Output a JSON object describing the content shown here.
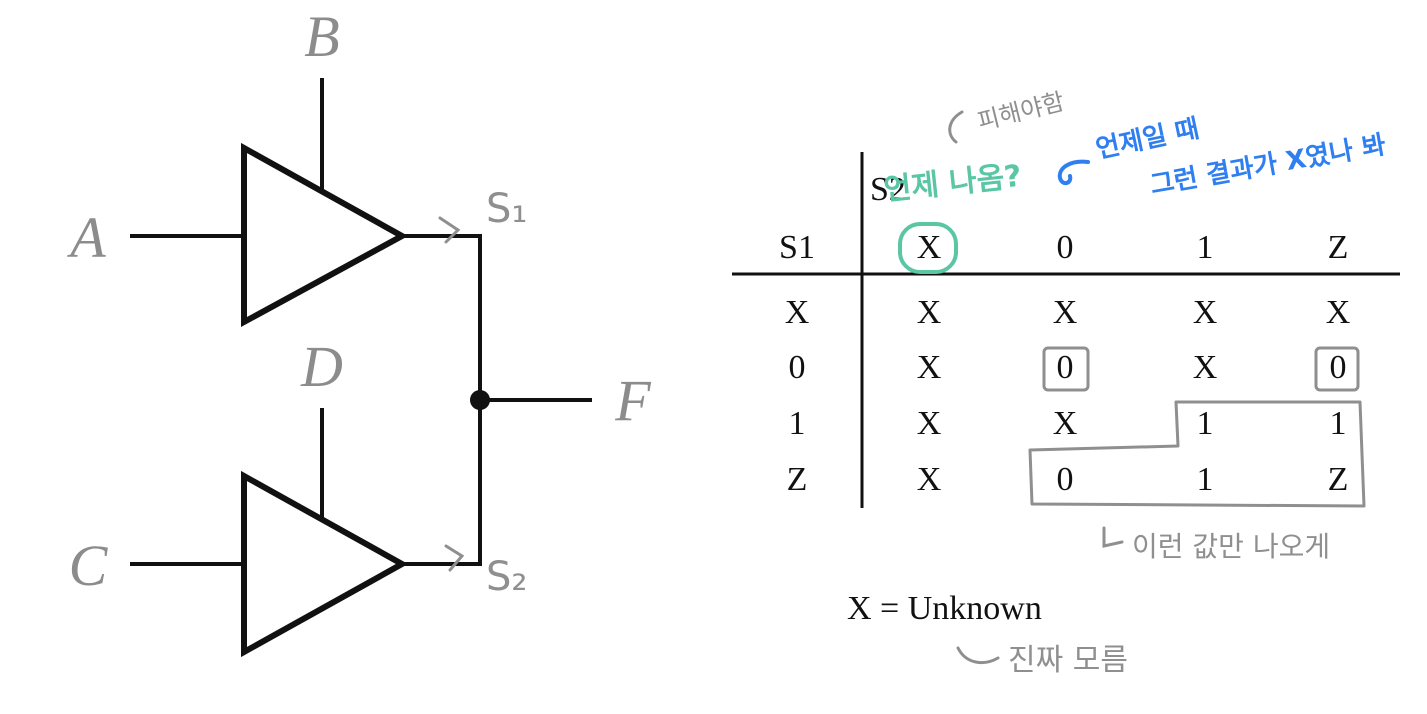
{
  "circuit": {
    "labels": {
      "a": "A",
      "b": "B",
      "c": "C",
      "d": "D",
      "f": "F"
    },
    "net_marks": {
      "s1": "S₁",
      "s2": "S₂"
    }
  },
  "table": {
    "col_header": "S2",
    "row_header": "S1",
    "columns": [
      "X",
      "0",
      "1",
      "Z"
    ],
    "rows": [
      {
        "label": "X",
        "cells": [
          "X",
          "X",
          "X",
          "X"
        ]
      },
      {
        "label": "0",
        "cells": [
          "X",
          "0",
          "X",
          "0"
        ]
      },
      {
        "label": "1",
        "cells": [
          "X",
          "X",
          "1",
          "1"
        ]
      },
      {
        "label": "Z",
        "cells": [
          "X",
          "0",
          "1",
          "Z"
        ]
      }
    ]
  },
  "legend": "X = Unknown",
  "notes": {
    "avoid": "피해야함",
    "when": "언제 나옴?",
    "explain_line1": "언제일 때",
    "explain_line2": "그런 결과가 X였나 봐",
    "values": "이런 값만 나오게",
    "unknown": "진짜 모름"
  },
  "colors": {
    "ink": "#111111",
    "label_gray": "#8c8c8c",
    "note_gray": "#8f8f8f",
    "teal": "#5ac6a4",
    "blue": "#2f7ff0"
  }
}
